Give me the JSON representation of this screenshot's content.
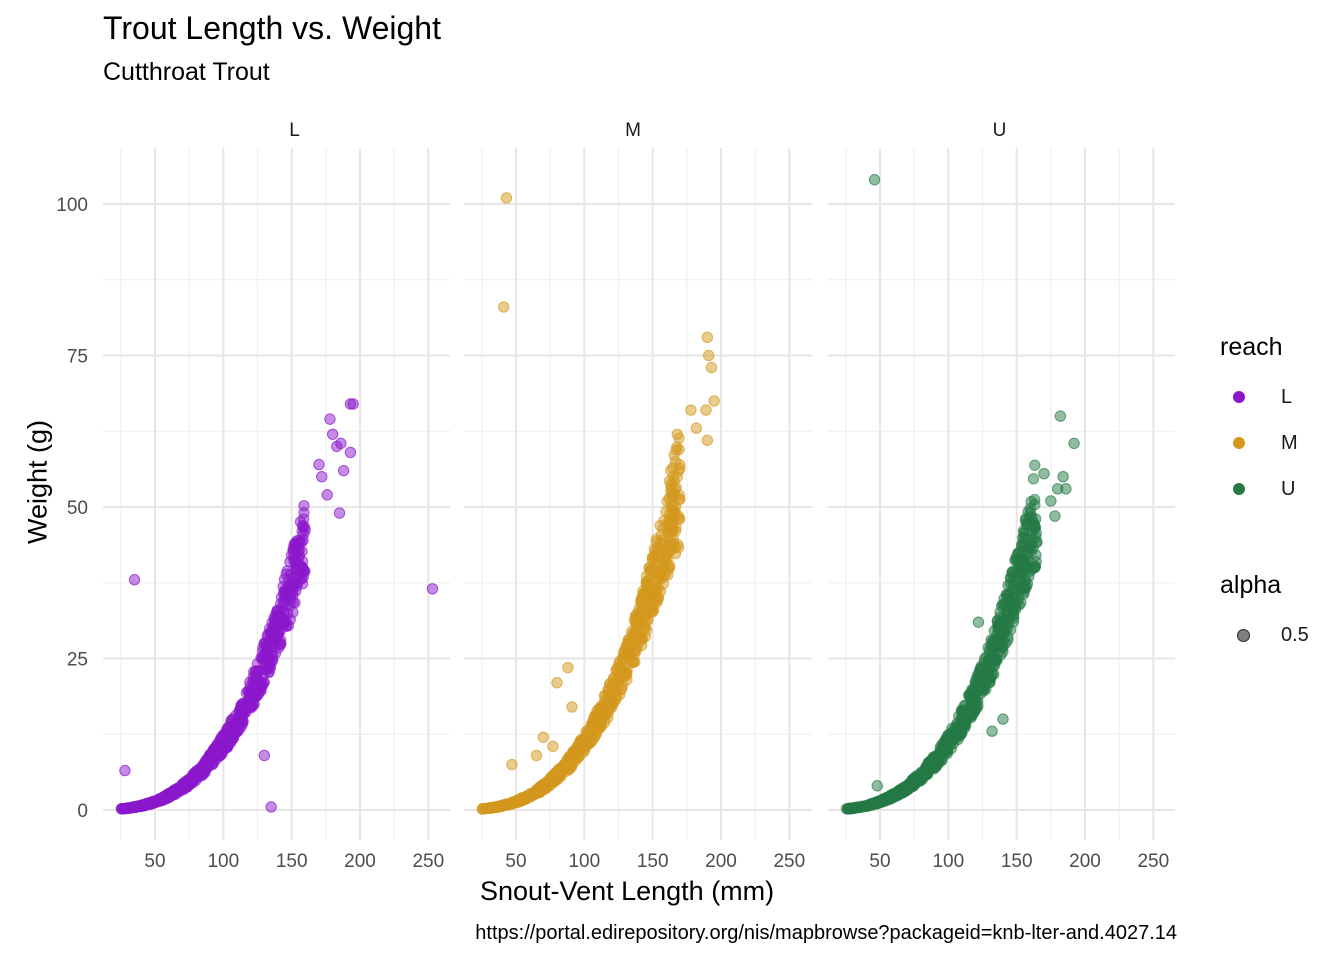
{
  "title": "Trout Length vs. Weight",
  "subtitle": "Cutthroat Trout",
  "caption": "https://portal.edirepository.org/nis/mapbrowse?packageid=knb-lter-and.4027.14",
  "chart_data": {
    "type": "scatter",
    "facets": [
      "L",
      "M",
      "U"
    ],
    "xlabel": "Snout-Vent Length (mm)",
    "ylabel": "Weight (g)",
    "xlim": [
      20,
      260
    ],
    "ylim": [
      -5,
      110
    ],
    "x_ticks": [
      50,
      100,
      150,
      200,
      250
    ],
    "y_ticks": [
      0,
      25,
      50,
      75,
      100
    ],
    "grid": true,
    "legend_position": "right",
    "colors": {
      "L": "#8B17CC",
      "M": "#D4981D",
      "U": "#247A45"
    },
    "point_alpha": 0.5,
    "curve": {
      "description": "weight rises with length",
      "a": 1.1e-05,
      "b": 3.0
    },
    "series": [
      {
        "name": "L",
        "length_range": [
          25,
          185
        ],
        "outliers": [
          {
            "x": 35,
            "y": 38
          },
          {
            "x": 253,
            "y": 36.5
          },
          {
            "x": 28,
            "y": 6.5
          },
          {
            "x": 135,
            "y": 0.5
          },
          {
            "x": 130,
            "y": 9
          },
          {
            "x": 195,
            "y": 67
          },
          {
            "x": 193,
            "y": 67
          },
          {
            "x": 178,
            "y": 64.5
          },
          {
            "x": 180,
            "y": 62
          },
          {
            "x": 186,
            "y": 60.5
          },
          {
            "x": 183,
            "y": 60
          },
          {
            "x": 193,
            "y": 59
          },
          {
            "x": 188,
            "y": 56
          },
          {
            "x": 170,
            "y": 57
          },
          {
            "x": 185,
            "y": 49
          },
          {
            "x": 172,
            "y": 55
          },
          {
            "x": 176,
            "y": 52
          }
        ]
      },
      {
        "name": "M",
        "length_range": [
          25,
          195
        ],
        "outliers": [
          {
            "x": 43,
            "y": 101
          },
          {
            "x": 41,
            "y": 83
          },
          {
            "x": 47,
            "y": 7.5
          },
          {
            "x": 80,
            "y": 21
          },
          {
            "x": 88,
            "y": 23.5
          },
          {
            "x": 70,
            "y": 12
          },
          {
            "x": 77,
            "y": 10.5
          },
          {
            "x": 65,
            "y": 9
          },
          {
            "x": 91,
            "y": 17
          },
          {
            "x": 190,
            "y": 78
          },
          {
            "x": 191,
            "y": 75
          },
          {
            "x": 193,
            "y": 73
          },
          {
            "x": 195,
            "y": 67.5
          },
          {
            "x": 178,
            "y": 66
          },
          {
            "x": 189,
            "y": 66
          },
          {
            "x": 182,
            "y": 63
          },
          {
            "x": 168,
            "y": 62
          },
          {
            "x": 190,
            "y": 61
          }
        ]
      },
      {
        "name": "U",
        "length_range": [
          25,
          190
        ],
        "outliers": [
          {
            "x": 46,
            "y": 104
          },
          {
            "x": 48,
            "y": 4
          },
          {
            "x": 122,
            "y": 31
          },
          {
            "x": 140,
            "y": 15
          },
          {
            "x": 132,
            "y": 13
          },
          {
            "x": 182,
            "y": 65
          },
          {
            "x": 192,
            "y": 60.5
          },
          {
            "x": 170,
            "y": 55.5
          },
          {
            "x": 184,
            "y": 55
          },
          {
            "x": 186,
            "y": 53
          },
          {
            "x": 180,
            "y": 53
          },
          {
            "x": 175,
            "y": 51
          },
          {
            "x": 160,
            "y": 49
          },
          {
            "x": 178,
            "y": 48.5
          }
        ]
      }
    ]
  },
  "legend": {
    "color_title": "reach",
    "color_items": [
      "L",
      "M",
      "U"
    ],
    "alpha_title": "alpha",
    "alpha_items": [
      "0.5"
    ]
  }
}
